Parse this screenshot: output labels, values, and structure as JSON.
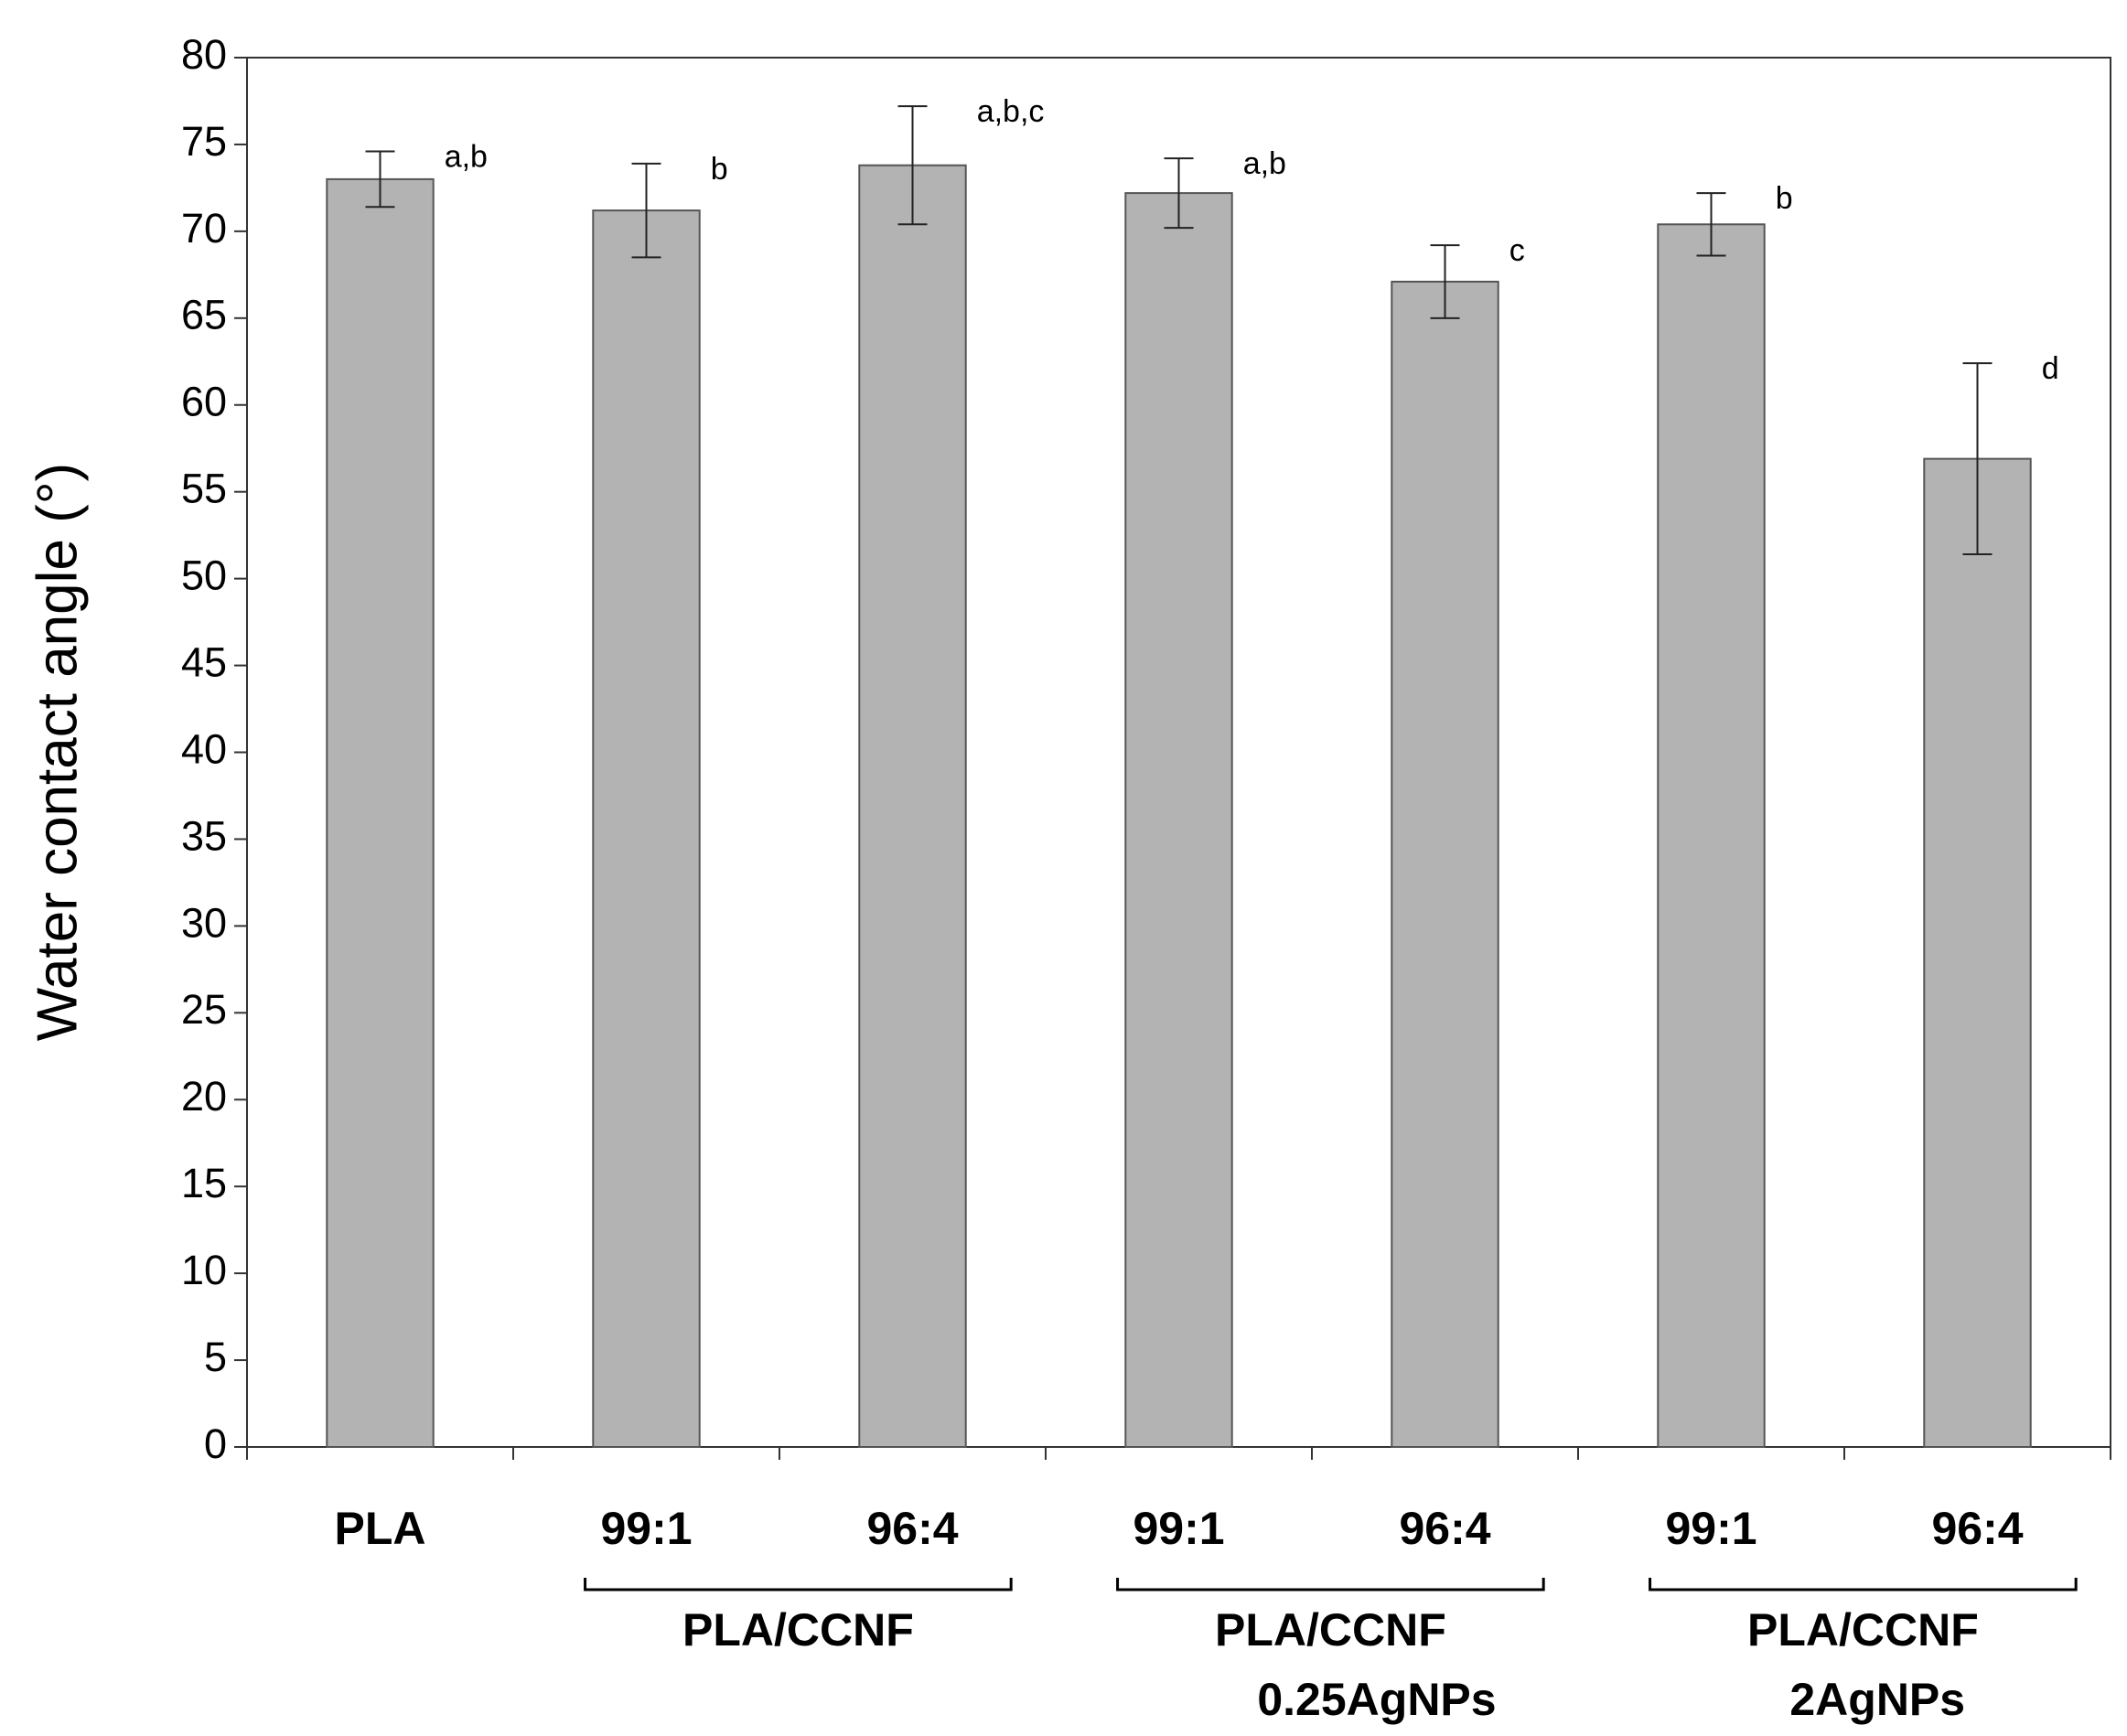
{
  "chart_data": {
    "type": "bar",
    "ylabel": "Water contact angle (°)",
    "categories": [
      "PLA",
      "99:1",
      "96:4",
      "99:1",
      "96:4",
      "99:1",
      "96:4"
    ],
    "values": [
      73.0,
      71.2,
      73.8,
      72.2,
      67.1,
      70.4,
      56.9
    ],
    "errors": [
      1.6,
      2.7,
      3.4,
      2.0,
      2.1,
      1.8,
      5.5
    ],
    "letters": [
      "a,b",
      "b",
      "a,b,c",
      "a,b",
      "c",
      "b",
      "d"
    ],
    "groups": [
      {
        "label": [
          "PLA/CCNF"
        ]
      },
      {
        "label": [
          "PLA/CCNF",
          "0.25AgNPs"
        ]
      },
      {
        "label": [
          "PLA/CCNF",
          "2AgNPs"
        ]
      }
    ],
    "color": "#b3b3b3",
    "ylim": [
      0,
      80
    ],
    "yticks": [
      0,
      5,
      10,
      15,
      20,
      25,
      30,
      35,
      40,
      45,
      50,
      55,
      60,
      65,
      70,
      75,
      80
    ],
    "grid": false
  }
}
